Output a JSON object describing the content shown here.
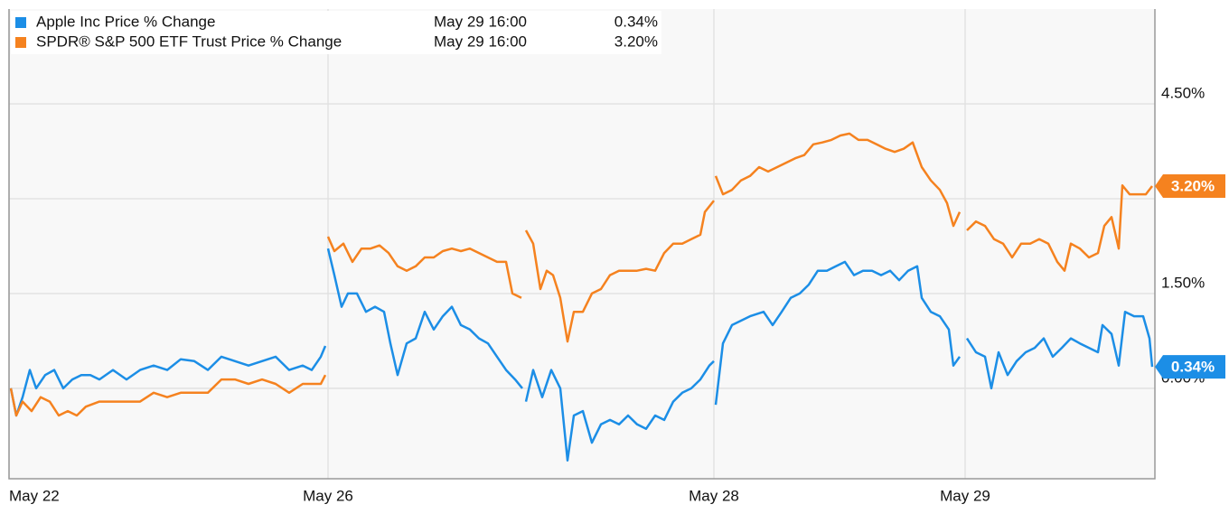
{
  "chart_data": {
    "type": "line",
    "series": [
      {
        "name": "Apple Inc Price % Change",
        "color": "#1c8ee6",
        "legend_time": "May 29 16:00",
        "legend_value": "0.34%",
        "end_label": "0.34%",
        "x": [
          0.2,
          0.8,
          1.5,
          2.3,
          3.0,
          4.0,
          5.0,
          6.0,
          7.0,
          8.0,
          9.0,
          10.0,
          11.5,
          13.0,
          14.5,
          16.0,
          17.5,
          19.0,
          20.5,
          22.0,
          23.5,
          25.0,
          26.5,
          28.0,
          29.5,
          31.0,
          32.5,
          33.5,
          34.5,
          35.0,
          null,
          35.3,
          36.0,
          36.8,
          37.5,
          38.5,
          39.5,
          40.5,
          41.5,
          42.2,
          43.0,
          44.0,
          45.0,
          46.0,
          47.0,
          48.0,
          49.0,
          50.0,
          51.0,
          52.0,
          53.0,
          54.0,
          55.0,
          56.0,
          56.8,
          null,
          57.2,
          58.0,
          59.0,
          60.0,
          61.0,
          61.8,
          62.5,
          63.5,
          64.5,
          65.5,
          66.5,
          67.5,
          68.5,
          69.5,
          70.5,
          71.5,
          72.5,
          73.5,
          74.5,
          75.5,
          76.5,
          77.5,
          78.0,
          null,
          78.2,
          79.0,
          80.0,
          81.0,
          82.0,
          83.5,
          84.5,
          85.5,
          86.5,
          87.5,
          88.5,
          89.5,
          90.5,
          91.5,
          92.5,
          93.5,
          94.5,
          95.5,
          96.5,
          97.5,
          98.5,
          99.5,
          100.5,
          101.0,
          102.0,
          103.0,
          104.0,
          104.5,
          105.2,
          null,
          106.0,
          107.0,
          108.0,
          108.7,
          109.5,
          110.5,
          111.5,
          112.5,
          113.5,
          114.5,
          115.5,
          116.5,
          117.5,
          118.5,
          119.5,
          120.5,
          121.0,
          122.0,
          122.8,
          123.5,
          124.5,
          125.5,
          126.2,
          126.5
        ],
        "values": [
          0,
          -0.43,
          -0.14,
          0.29,
          0,
          0.21,
          0.29,
          0,
          0.14,
          0.21,
          0.21,
          0.14,
          0.29,
          0.14,
          0.29,
          0.36,
          0.29,
          0.46,
          0.43,
          0.29,
          0.5,
          0.43,
          0.36,
          0.43,
          0.5,
          0.29,
          0.36,
          0.29,
          0.5,
          0.67,
          null,
          2.21,
          1.79,
          1.29,
          1.5,
          1.5,
          1.21,
          1.29,
          1.21,
          0.71,
          0.21,
          0.71,
          0.79,
          1.21,
          0.93,
          1.14,
          1.29,
          1.0,
          0.93,
          0.79,
          0.71,
          0.5,
          0.29,
          0.14,
          0,
          null,
          -0.21,
          0.29,
          -0.14,
          0.29,
          0,
          -1.14,
          -0.43,
          -0.36,
          -0.86,
          -0.57,
          -0.5,
          -0.57,
          -0.43,
          -0.57,
          -0.64,
          -0.43,
          -0.5,
          -0.21,
          -0.07,
          0,
          0.14,
          0.36,
          0.43,
          null,
          -0.26,
          0.71,
          1.0,
          1.07,
          1.14,
          1.21,
          1.0,
          1.21,
          1.43,
          1.5,
          1.64,
          1.86,
          1.86,
          1.93,
          2.0,
          1.79,
          1.86,
          1.86,
          1.79,
          1.86,
          1.71,
          1.86,
          1.93,
          1.43,
          1.21,
          1.14,
          0.93,
          0.36,
          0.5,
          null,
          0.79,
          0.57,
          0.5,
          0,
          0.57,
          0.21,
          0.43,
          0.57,
          0.64,
          0.79,
          0.5,
          0.64,
          0.79,
          0.71,
          0.64,
          0.57,
          1.0,
          0.86,
          0.36,
          1.21,
          1.14,
          1.14,
          0.79,
          0.34
        ]
      },
      {
        "name": "SPDR® S&P 500 ETF Trust Price % Change",
        "color": "#f5821f",
        "legend_time": "May 29 16:00",
        "legend_value": "3.20%",
        "end_label": "3.20%",
        "x": [
          0.2,
          0.8,
          1.5,
          2.5,
          3.5,
          4.5,
          5.5,
          6.5,
          7.5,
          8.5,
          10,
          11.5,
          13,
          14.5,
          16,
          17.5,
          19,
          20.5,
          22,
          23.5,
          25,
          26.5,
          28,
          29.5,
          31,
          32.5,
          33.5,
          34.5,
          35,
          null,
          35.3,
          36,
          37,
          38,
          39,
          40,
          41,
          42,
          43,
          44,
          45,
          46,
          47,
          48,
          49,
          50,
          51,
          52,
          53,
          54,
          55,
          55.7,
          56.7,
          null,
          57.2,
          58,
          58.8,
          59.5,
          60.2,
          61,
          61.8,
          62.5,
          63.5,
          64.5,
          65.5,
          66.5,
          67.5,
          68.5,
          69.5,
          70.5,
          71.5,
          72.5,
          73.5,
          74.5,
          75.5,
          76.5,
          77,
          78,
          null,
          78.2,
          79,
          80,
          81,
          82,
          83,
          84,
          85,
          86,
          87,
          88,
          89,
          90,
          91,
          92,
          93,
          94,
          95,
          96,
          97,
          98,
          99,
          100,
          101,
          102,
          103,
          103.8,
          104.5,
          105.2,
          null,
          106,
          107,
          108,
          109,
          110,
          111,
          112,
          113,
          114,
          115,
          116,
          116.8,
          117.5,
          118.5,
          119.5,
          120.5,
          121.2,
          122,
          122.8,
          123.2,
          124,
          125,
          125.8,
          126.5
        ],
        "values": [
          0,
          -0.43,
          -0.21,
          -0.36,
          -0.14,
          -0.21,
          -0.43,
          -0.36,
          -0.43,
          -0.29,
          -0.21,
          -0.21,
          -0.21,
          -0.21,
          -0.07,
          -0.14,
          -0.07,
          -0.07,
          -0.07,
          0.14,
          0.14,
          0.07,
          0.14,
          0.07,
          -0.07,
          0.07,
          0.07,
          0.07,
          0.21,
          null,
          2.4,
          2.17,
          2.29,
          2.0,
          2.21,
          2.21,
          2.26,
          2.14,
          1.93,
          1.86,
          1.93,
          2.07,
          2.07,
          2.17,
          2.21,
          2.17,
          2.21,
          2.14,
          2.07,
          2.0,
          2.0,
          1.5,
          1.43,
          null,
          2.5,
          2.29,
          1.57,
          1.86,
          1.79,
          1.43,
          0.74,
          1.21,
          1.21,
          1.5,
          1.57,
          1.79,
          1.86,
          1.86,
          1.86,
          1.89,
          1.86,
          2.14,
          2.29,
          2.29,
          2.36,
          2.43,
          2.79,
          2.97,
          null,
          3.36,
          3.07,
          3.14,
          3.29,
          3.36,
          3.5,
          3.43,
          3.5,
          3.57,
          3.64,
          3.69,
          3.86,
          3.89,
          3.93,
          4.0,
          4.03,
          3.93,
          3.93,
          3.86,
          3.79,
          3.74,
          3.79,
          3.89,
          3.5,
          3.29,
          3.14,
          2.93,
          2.57,
          2.79,
          null,
          2.5,
          2.64,
          2.57,
          2.36,
          2.29,
          2.07,
          2.29,
          2.29,
          2.36,
          2.29,
          2.0,
          1.86,
          2.29,
          2.21,
          2.07,
          2.14,
          2.57,
          2.71,
          2.21,
          3.21,
          3.07,
          3.07,
          3.07,
          3.2
        ]
      }
    ],
    "xlim": [
      0,
      126.8
    ],
    "xticks": [
      {
        "value": 0,
        "label": "May 22"
      },
      {
        "value": 35.3,
        "label": "May 26"
      },
      {
        "value": 78.0,
        "label": "May 28"
      },
      {
        "value": 105.8,
        "label": "May 29"
      }
    ],
    "ylim": [
      -1.43,
      6.0
    ],
    "yticks": [
      {
        "value": 4.5,
        "label": "4.50%"
      },
      {
        "value": 1.5,
        "label": "1.50%"
      },
      {
        "value": 0,
        "label": "0.00%"
      }
    ],
    "ygrid": [
      0,
      1.5,
      3,
      4.5
    ],
    "grid": true
  }
}
